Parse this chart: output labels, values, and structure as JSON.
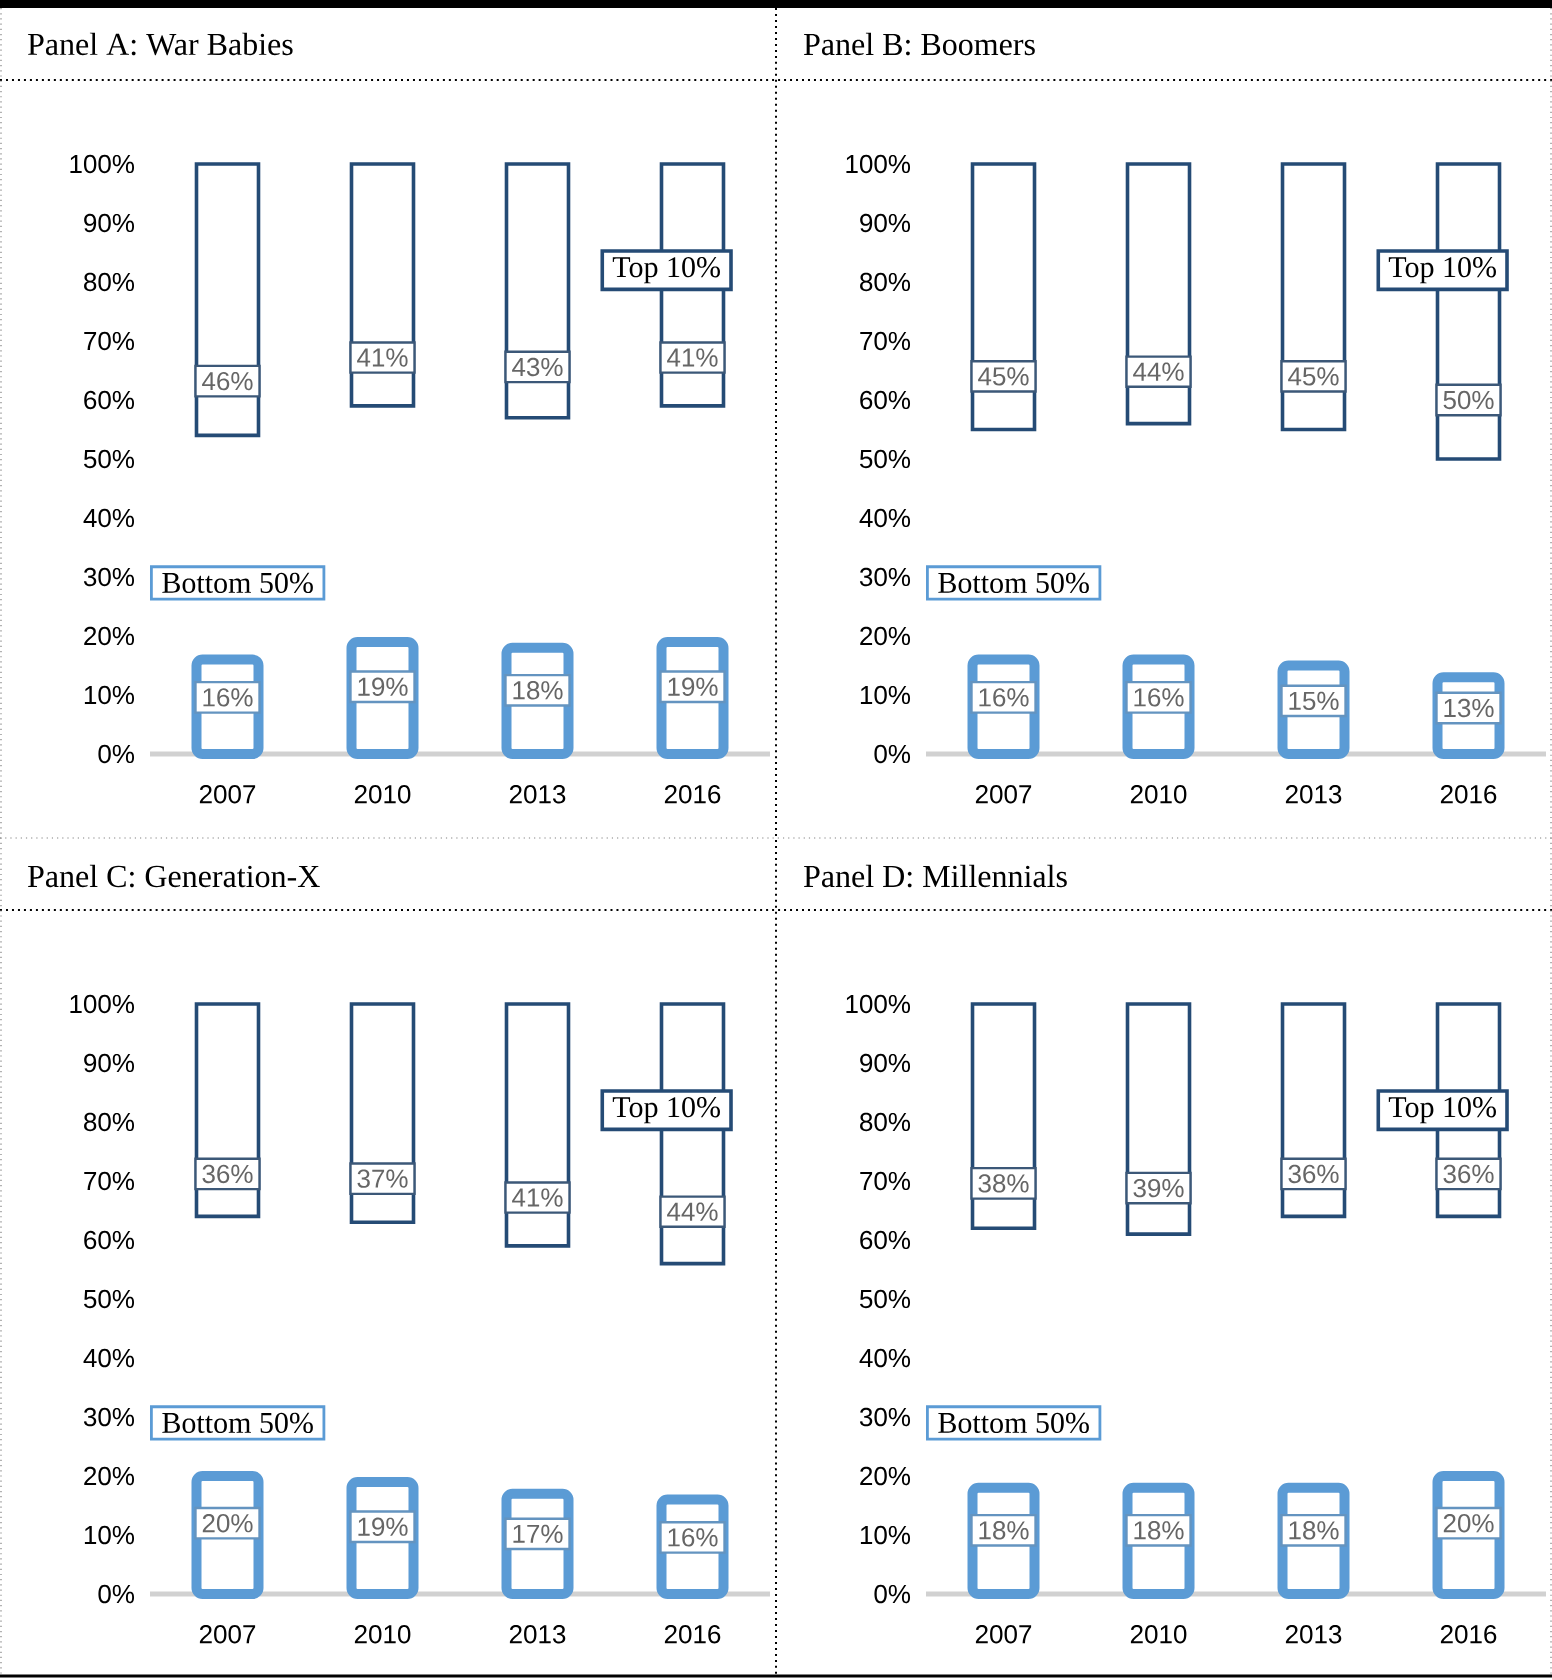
{
  "chart_data": [
    {
      "type": "bar",
      "title": "Panel A: War Babies",
      "categories": [
        "2007",
        "2010",
        "2013",
        "2016"
      ],
      "ylim": [
        0,
        100
      ],
      "yticks": [
        {
          "value": 0,
          "label": "0%"
        },
        {
          "value": 10,
          "label": "10%"
        },
        {
          "value": 20,
          "label": "20%"
        },
        {
          "value": 30,
          "label": "30%"
        },
        {
          "value": 40,
          "label": "40%"
        },
        {
          "value": 50,
          "label": "50%"
        },
        {
          "value": 60,
          "label": "60%"
        },
        {
          "value": 70,
          "label": "70%"
        },
        {
          "value": 80,
          "label": "80%"
        },
        {
          "value": 90,
          "label": "90%"
        },
        {
          "value": 100,
          "label": "100%"
        }
      ],
      "series": [
        {
          "name": "Top 10%",
          "color": "#254b75",
          "values": [
            46,
            41,
            43,
            41
          ],
          "base": [
            54,
            59,
            57,
            59
          ],
          "value_labels": [
            "46%",
            "41%",
            "43%",
            "41%"
          ]
        },
        {
          "name": "Bottom 50%",
          "color": "#5b9bd5",
          "values": [
            16,
            19,
            18,
            19
          ],
          "value_labels": [
            "16%",
            "19%",
            "18%",
            "19%"
          ]
        }
      ]
    },
    {
      "type": "bar",
      "title": "Panel B: Boomers",
      "categories": [
        "2007",
        "2010",
        "2013",
        "2016"
      ],
      "ylim": [
        0,
        100
      ],
      "yticks": [
        {
          "value": 0,
          "label": "0%"
        },
        {
          "value": 10,
          "label": "10%"
        },
        {
          "value": 20,
          "label": "20%"
        },
        {
          "value": 30,
          "label": "30%"
        },
        {
          "value": 40,
          "label": "40%"
        },
        {
          "value": 50,
          "label": "50%"
        },
        {
          "value": 60,
          "label": "60%"
        },
        {
          "value": 70,
          "label": "70%"
        },
        {
          "value": 80,
          "label": "80%"
        },
        {
          "value": 90,
          "label": "90%"
        },
        {
          "value": 100,
          "label": "100%"
        }
      ],
      "series": [
        {
          "name": "Top 10%",
          "color": "#254b75",
          "values": [
            45,
            44,
            45,
            50
          ],
          "base": [
            55,
            56,
            55,
            50
          ],
          "value_labels": [
            "45%",
            "44%",
            "45%",
            "50%"
          ]
        },
        {
          "name": "Bottom 50%",
          "color": "#5b9bd5",
          "values": [
            16,
            16,
            15,
            13
          ],
          "value_labels": [
            "16%",
            "16%",
            "15%",
            "13%"
          ]
        }
      ]
    },
    {
      "type": "bar",
      "title": "Panel C: Generation-X",
      "categories": [
        "2007",
        "2010",
        "2013",
        "2016"
      ],
      "ylim": [
        0,
        100
      ],
      "yticks": [
        {
          "value": 0,
          "label": "0%"
        },
        {
          "value": 10,
          "label": "10%"
        },
        {
          "value": 20,
          "label": "20%"
        },
        {
          "value": 30,
          "label": "30%"
        },
        {
          "value": 40,
          "label": "40%"
        },
        {
          "value": 50,
          "label": "50%"
        },
        {
          "value": 60,
          "label": "60%"
        },
        {
          "value": 70,
          "label": "70%"
        },
        {
          "value": 80,
          "label": "80%"
        },
        {
          "value": 90,
          "label": "90%"
        },
        {
          "value": 100,
          "label": "100%"
        }
      ],
      "series": [
        {
          "name": "Top 10%",
          "color": "#254b75",
          "values": [
            36,
            37,
            41,
            44
          ],
          "base": [
            64,
            63,
            59,
            56
          ],
          "value_labels": [
            "36%",
            "37%",
            "41%",
            "44%"
          ]
        },
        {
          "name": "Bottom 50%",
          "color": "#5b9bd5",
          "values": [
            20,
            19,
            17,
            16
          ],
          "value_labels": [
            "20%",
            "19%",
            "17%",
            "16%"
          ]
        }
      ]
    },
    {
      "type": "bar",
      "title": "Panel D: Millennials",
      "categories": [
        "2007",
        "2010",
        "2013",
        "2016"
      ],
      "ylim": [
        0,
        100
      ],
      "yticks": [
        {
          "value": 0,
          "label": "0%"
        },
        {
          "value": 10,
          "label": "10%"
        },
        {
          "value": 20,
          "label": "20%"
        },
        {
          "value": 30,
          "label": "30%"
        },
        {
          "value": 40,
          "label": "40%"
        },
        {
          "value": 50,
          "label": "50%"
        },
        {
          "value": 60,
          "label": "60%"
        },
        {
          "value": 70,
          "label": "70%"
        },
        {
          "value": 80,
          "label": "80%"
        },
        {
          "value": 90,
          "label": "90%"
        },
        {
          "value": 100,
          "label": "100%"
        }
      ],
      "series": [
        {
          "name": "Top 10%",
          "color": "#254b75",
          "values": [
            38,
            39,
            36,
            36
          ],
          "base": [
            62,
            61,
            64,
            64
          ],
          "value_labels": [
            "38%",
            "39%",
            "36%",
            "36%"
          ]
        },
        {
          "name": "Bottom 50%",
          "color": "#5b9bd5",
          "values": [
            18,
            18,
            18,
            20
          ],
          "value_labels": [
            "18%",
            "18%",
            "18%",
            "20%"
          ]
        }
      ]
    }
  ]
}
